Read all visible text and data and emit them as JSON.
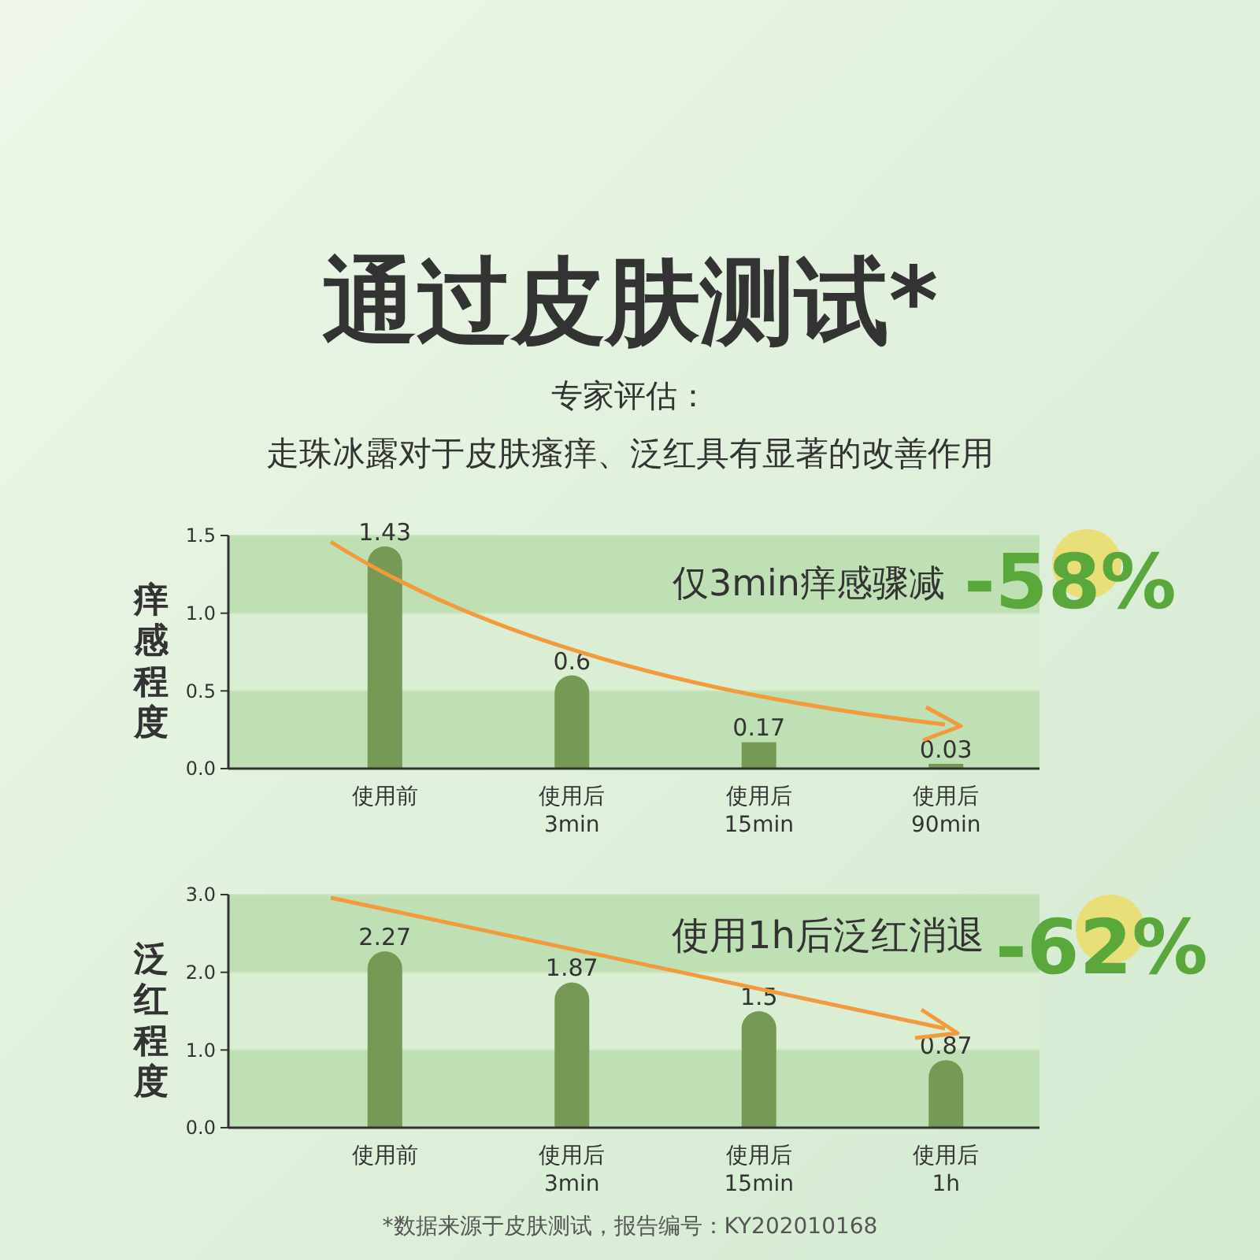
{
  "chart_data": [
    {
      "type": "bar",
      "title": "通过皮肤测试*",
      "subtitle": "专家评估：",
      "ylabel": "痒感程度",
      "categories": [
        "使用前",
        "使用后\n3min",
        "使用后\n15min",
        "使用后\n90min"
      ],
      "values": [
        1.43,
        0.6,
        0.17,
        0.03
      ],
      "color": "#769a55",
      "ylim": [
        0,
        1.5
      ],
      "yticks": [
        {
          "value": 0,
          "label": "0.0"
        },
        {
          "value": 0.5,
          "label": "0.5"
        },
        {
          "value": 1,
          "label": "1.0"
        },
        {
          "value": 1.5,
          "label": "1.5"
        }
      ],
      "grid": "y",
      "data_labels": true,
      "annotations": [
        "走珠冰露对于皮肤瘙痒、泛红具有显著的改善作用",
        "仅3min痒感骤减",
        "-58%"
      ]
    },
    {
      "type": "bar",
      "ylabel": "泛红程度",
      "categories": [
        "使用前",
        "使用后\n3min",
        "使用后\n15min",
        "使用后\n1h"
      ],
      "values": [
        2.27,
        1.87,
        1.5,
        0.87
      ],
      "color": "#769a55",
      "ylim": [
        0,
        3
      ],
      "yticks": [
        {
          "value": 0,
          "label": "0.0"
        },
        {
          "value": 1,
          "label": "1.0"
        },
        {
          "value": 2,
          "label": "2.0"
        },
        {
          "value": 3,
          "label": "3.0"
        }
      ],
      "grid": "y",
      "data_labels": true,
      "annotations": [
        "使用1h后泛红消退",
        "-62%",
        "*数据来源于皮肤测试，报告编号：KY202010168"
      ]
    }
  ]
}
